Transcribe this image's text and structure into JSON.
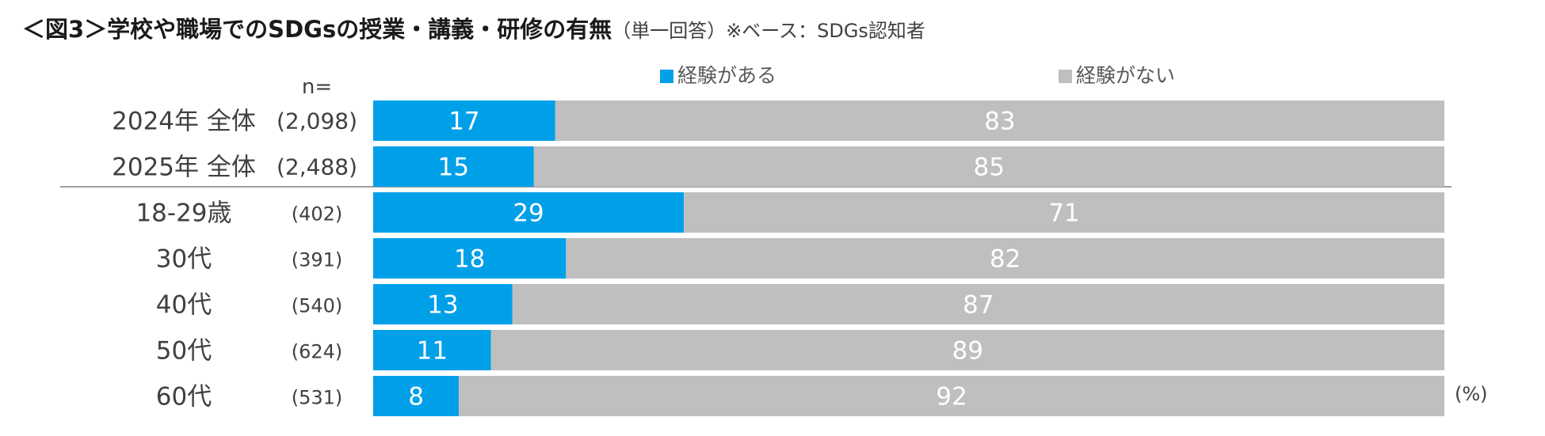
{
  "title": {
    "main": "＜図3＞学校や職場でのSDGsの授業・講義・研修の有無",
    "note": "（単一回答）※ベース：SDGs認知者"
  },
  "n_header": "n=",
  "unit": "(%)",
  "colors": {
    "yes": "#00A0E9",
    "no": "#BFBFBF",
    "label_text": "#FFFFFF"
  },
  "chart_data": {
    "type": "bar",
    "orientation": "horizontal",
    "stacked": "100%",
    "title": "＜図3＞学校や職場でのSDGsの授業・講義・研修の有無",
    "legend_position": "top",
    "categories": [
      "2024年 全体",
      "2025年 全体",
      "18-29歳",
      "30代",
      "40代",
      "50代",
      "60代"
    ],
    "n": [
      "(2,098)",
      "(2,488)",
      "(402)",
      "(391)",
      "(540)",
      "(624)",
      "(531)"
    ],
    "series": [
      {
        "name": "経験がある",
        "values": [
          17,
          15,
          29,
          18,
          13,
          11,
          8
        ]
      },
      {
        "name": "経験がない",
        "values": [
          83,
          85,
          71,
          82,
          87,
          89,
          92
        ]
      }
    ],
    "xlim": [
      0,
      100
    ]
  }
}
